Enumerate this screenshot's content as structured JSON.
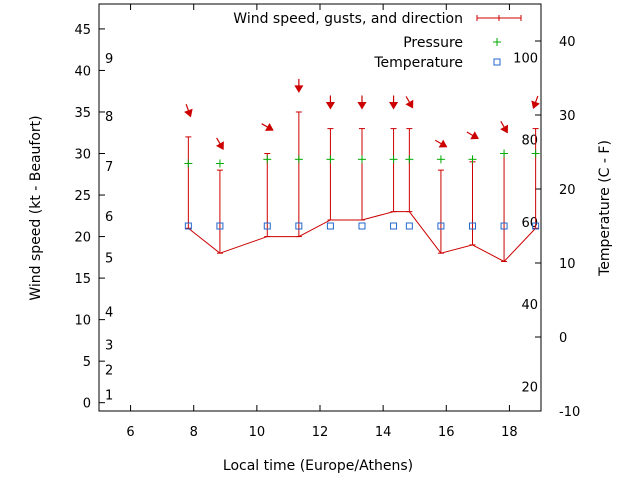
{
  "chart_data": {
    "type": "line",
    "xlabel": "Local time (Europe/Athens)",
    "ylabel": "Wind speed (kt - Beaufort)",
    "y2label": "Temperature (C - F)",
    "xlim": [
      5,
      19
    ],
    "ylim": [
      -1,
      48
    ],
    "y2lim": [
      -10,
      45
    ],
    "xticks": [
      "6",
      "8",
      "10",
      "12",
      "14",
      "16",
      "18"
    ],
    "xtick_values": [
      6,
      8,
      10,
      12,
      14,
      16,
      18
    ],
    "yticks": [
      "0",
      "5",
      "10",
      "15",
      "20",
      "25",
      "30",
      "35",
      "40",
      "45"
    ],
    "ytick_values": [
      0,
      5,
      10,
      15,
      20,
      25,
      30,
      35,
      40,
      45
    ],
    "y2ticks": [
      "-10",
      "0",
      "10",
      "20",
      "30",
      "40"
    ],
    "y2tick_values": [
      -10,
      0,
      10,
      20,
      30,
      40
    ],
    "beaufort_labels": [
      "1",
      "2",
      "3",
      "4",
      "5",
      "6",
      "7",
      "8",
      "9"
    ],
    "beaufort_values": [
      1,
      4,
      7,
      11,
      17.5,
      22.5,
      28.5,
      34.5,
      41.5
    ],
    "fahrenheit_labels": [
      "20",
      "40",
      "60",
      "80",
      "100"
    ],
    "fahrenheit_values": [
      20,
      40,
      60,
      80,
      100
    ],
    "grid": false,
    "legend_position": "top-right",
    "series": [
      {
        "name": "Wind speed, gusts, and direction",
        "color": "#cc0000",
        "x": [
          7.83,
          8.83,
          10.33,
          11.33,
          12.33,
          13.33,
          14.33,
          14.83,
          15.83,
          16.83,
          17.83,
          18.83
        ],
        "values": [
          21,
          18,
          20,
          20,
          22,
          22,
          23,
          23,
          18,
          19,
          17,
          21
        ],
        "gusts": [
          32,
          28,
          30,
          35,
          33,
          33,
          33,
          33,
          28,
          29,
          30,
          33
        ],
        "direction_deg": [
          340,
          330,
          300,
          360,
          360,
          360,
          360,
          330,
          300,
          300,
          330,
          20
        ]
      },
      {
        "name": "Pressure",
        "color": "#00aa00",
        "x": [
          7.83,
          8.83,
          10.33,
          11.33,
          12.33,
          13.33,
          14.33,
          14.83,
          15.83,
          16.83,
          17.83,
          18.83
        ],
        "values": [
          28.8,
          28.8,
          29.3,
          29.3,
          29.3,
          29.3,
          29.3,
          29.3,
          29.3,
          29.3,
          30.0,
          30.0
        ]
      },
      {
        "name": "Temperature",
        "color": "#2266cc",
        "x": [
          7.83,
          8.83,
          10.33,
          11.33,
          12.33,
          13.33,
          14.33,
          14.83,
          15.83,
          16.83,
          17.83,
          18.83
        ],
        "values": [
          15,
          15,
          15,
          15,
          15,
          15,
          15,
          15,
          15,
          15,
          15,
          15
        ]
      }
    ]
  }
}
